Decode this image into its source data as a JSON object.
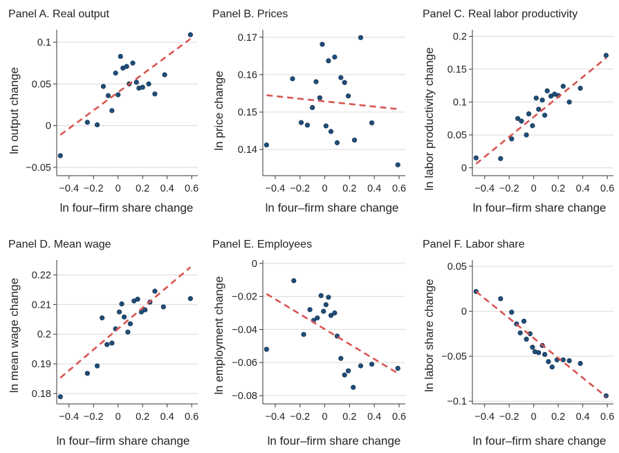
{
  "figure": {
    "panels": [
      {
        "title": "Panel A. Real output",
        "ylabel": "ln output change",
        "xlabel": "ln four–firm share change"
      },
      {
        "title": "Panel B. Prices",
        "ylabel": "ln price change",
        "xlabel": "ln four–firm share change"
      },
      {
        "title": "Panel C. Real labor productivity",
        "ylabel": "ln labor productivity change",
        "xlabel": "ln four–firm share change"
      },
      {
        "title": "Panel D. Mean wage",
        "ylabel": "ln mean wage change",
        "xlabel": "ln four–firm share change"
      },
      {
        "title": "Panel E. Employees",
        "ylabel": "ln employment change",
        "xlabel": "ln four–firm share change"
      },
      {
        "title": "Panel F. Labor share",
        "ylabel": "ln labor share change",
        "xlabel": "ln four–firm share change"
      }
    ]
  },
  "colors": {
    "point": "#1f4e79",
    "point_outline": "#0d2a45",
    "fit_line": "#d9534f",
    "gridline": "#d9d9d9",
    "axis": "#333333"
  },
  "chart_data": [
    {
      "type": "scatter",
      "title": "Panel A. Real output",
      "xlabel": "ln four–firm share change",
      "ylabel": "ln output change",
      "xlim": [
        -0.5,
        0.65
      ],
      "ylim": [
        -0.06,
        0.115
      ],
      "xticks": [
        -0.4,
        -0.2,
        0,
        0.2,
        0.4,
        0.6
      ],
      "xtick_labels": [
        "−0.4",
        "−0.2",
        "0",
        "0.2",
        "0.4",
        "0.6"
      ],
      "yticks": [
        -0.05,
        0,
        0.05,
        0.1
      ],
      "ytick_labels": [
        "−0.05",
        "0",
        "0.05",
        "0.1"
      ],
      "grid": "horizontal",
      "points": [
        {
          "x": -0.47,
          "y": -0.036
        },
        {
          "x": -0.25,
          "y": 0.004
        },
        {
          "x": -0.17,
          "y": 0.001
        },
        {
          "x": -0.12,
          "y": 0.047
        },
        {
          "x": -0.08,
          "y": 0.036
        },
        {
          "x": -0.05,
          "y": 0.018
        },
        {
          "x": -0.02,
          "y": 0.063
        },
        {
          "x": 0.0,
          "y": 0.037
        },
        {
          "x": 0.02,
          "y": 0.083
        },
        {
          "x": 0.04,
          "y": 0.069
        },
        {
          "x": 0.07,
          "y": 0.071
        },
        {
          "x": 0.09,
          "y": 0.05
        },
        {
          "x": 0.12,
          "y": 0.075
        },
        {
          "x": 0.15,
          "y": 0.052
        },
        {
          "x": 0.17,
          "y": 0.045
        },
        {
          "x": 0.2,
          "y": 0.046
        },
        {
          "x": 0.25,
          "y": 0.05
        },
        {
          "x": 0.3,
          "y": 0.038
        },
        {
          "x": 0.38,
          "y": 0.061
        },
        {
          "x": 0.59,
          "y": 0.109
        }
      ],
      "fit_line": [
        {
          "x": -0.47,
          "y": -0.011
        },
        {
          "x": 0.59,
          "y": 0.104
        }
      ]
    },
    {
      "type": "scatter",
      "title": "Panel B. Prices",
      "xlabel": "ln four–firm share change",
      "ylabel": "ln price change",
      "xlim": [
        -0.5,
        0.65
      ],
      "ylim": [
        0.133,
        0.172
      ],
      "xticks": [
        -0.4,
        -0.2,
        0,
        0.2,
        0.4,
        0.6
      ],
      "xtick_labels": [
        "−0.4",
        "−0.2",
        "0",
        "0.2",
        "0.4",
        "0.6"
      ],
      "yticks": [
        0.14,
        0.15,
        0.16,
        0.17
      ],
      "ytick_labels": [
        "0.14",
        "0.15",
        "0.16",
        "0.17"
      ],
      "grid": "horizontal",
      "points": [
        {
          "x": -0.47,
          "y": 0.1412
        },
        {
          "x": -0.26,
          "y": 0.1589
        },
        {
          "x": -0.19,
          "y": 0.1472
        },
        {
          "x": -0.14,
          "y": 0.1465
        },
        {
          "x": -0.1,
          "y": 0.1512
        },
        {
          "x": -0.07,
          "y": 0.1581
        },
        {
          "x": -0.04,
          "y": 0.1538
        },
        {
          "x": -0.02,
          "y": 0.1681
        },
        {
          "x": 0.01,
          "y": 0.1463
        },
        {
          "x": 0.03,
          "y": 0.1637
        },
        {
          "x": 0.05,
          "y": 0.1448
        },
        {
          "x": 0.08,
          "y": 0.1647
        },
        {
          "x": 0.1,
          "y": 0.1418
        },
        {
          "x": 0.13,
          "y": 0.1592
        },
        {
          "x": 0.16,
          "y": 0.1579
        },
        {
          "x": 0.19,
          "y": 0.1543
        },
        {
          "x": 0.24,
          "y": 0.1425
        },
        {
          "x": 0.29,
          "y": 0.1699
        },
        {
          "x": 0.38,
          "y": 0.1471
        },
        {
          "x": 0.59,
          "y": 0.1359
        }
      ],
      "fit_line": [
        {
          "x": -0.47,
          "y": 0.1545
        },
        {
          "x": 0.59,
          "y": 0.1508
        }
      ]
    },
    {
      "type": "scatter",
      "title": "Panel C. Real labor productivity",
      "xlabel": "ln four–firm share change",
      "ylabel": "ln labor productivity change",
      "xlim": [
        -0.5,
        0.65
      ],
      "ylim": [
        -0.012,
        0.21
      ],
      "xticks": [
        -0.4,
        -0.2,
        0,
        0.2,
        0.4,
        0.6
      ],
      "xtick_labels": [
        "−0.4",
        "−0.2",
        "0",
        "0.2",
        "0.4",
        "0.6"
      ],
      "yticks": [
        0,
        0.05,
        0.1,
        0.15,
        0.2
      ],
      "ytick_labels": [
        "0",
        "0.05",
        "0.1",
        "0.15",
        "0.2"
      ],
      "grid": "horizontal",
      "points": [
        {
          "x": -0.47,
          "y": 0.015
        },
        {
          "x": -0.27,
          "y": 0.014
        },
        {
          "x": -0.18,
          "y": 0.044
        },
        {
          "x": -0.13,
          "y": 0.075
        },
        {
          "x": -0.1,
          "y": 0.071
        },
        {
          "x": -0.06,
          "y": 0.05
        },
        {
          "x": -0.04,
          "y": 0.082
        },
        {
          "x": -0.01,
          "y": 0.064
        },
        {
          "x": 0.02,
          "y": 0.106
        },
        {
          "x": 0.04,
          "y": 0.089
        },
        {
          "x": 0.07,
          "y": 0.103
        },
        {
          "x": 0.09,
          "y": 0.08
        },
        {
          "x": 0.11,
          "y": 0.117
        },
        {
          "x": 0.14,
          "y": 0.109
        },
        {
          "x": 0.17,
          "y": 0.112
        },
        {
          "x": 0.2,
          "y": 0.11
        },
        {
          "x": 0.24,
          "y": 0.124
        },
        {
          "x": 0.29,
          "y": 0.1
        },
        {
          "x": 0.38,
          "y": 0.121
        },
        {
          "x": 0.59,
          "y": 0.171
        }
      ],
      "fit_line": [
        {
          "x": -0.47,
          "y": 0.006
        },
        {
          "x": 0.59,
          "y": 0.167
        }
      ]
    },
    {
      "type": "scatter",
      "title": "Panel D. Mean wage",
      "xlabel": "ln four–firm share change",
      "ylabel": "ln mean wage change",
      "xlim": [
        -0.5,
        0.65
      ],
      "ylim": [
        0.1765,
        0.225
      ],
      "xticks": [
        -0.4,
        -0.2,
        0,
        0.2,
        0.4,
        0.6
      ],
      "xtick_labels": [
        "−0.4",
        "−0.2",
        "0",
        "0.2",
        "0.4",
        "0.6"
      ],
      "yticks": [
        0.18,
        0.19,
        0.2,
        0.21,
        0.22
      ],
      "ytick_labels": [
        "0.18",
        "0.19",
        "0.2",
        "0.21",
        "0.22"
      ],
      "grid": "horizontal",
      "points": [
        {
          "x": -0.47,
          "y": 0.1789
        },
        {
          "x": -0.25,
          "y": 0.1868
        },
        {
          "x": -0.17,
          "y": 0.1893
        },
        {
          "x": -0.13,
          "y": 0.2055
        },
        {
          "x": -0.09,
          "y": 0.1965
        },
        {
          "x": -0.05,
          "y": 0.197
        },
        {
          "x": -0.02,
          "y": 0.2018
        },
        {
          "x": 0.01,
          "y": 0.2075
        },
        {
          "x": 0.03,
          "y": 0.2102
        },
        {
          "x": 0.05,
          "y": 0.2058
        },
        {
          "x": 0.08,
          "y": 0.2007
        },
        {
          "x": 0.1,
          "y": 0.2035
        },
        {
          "x": 0.13,
          "y": 0.2112
        },
        {
          "x": 0.16,
          "y": 0.2118
        },
        {
          "x": 0.19,
          "y": 0.2075
        },
        {
          "x": 0.22,
          "y": 0.2082
        },
        {
          "x": 0.26,
          "y": 0.2108
        },
        {
          "x": 0.3,
          "y": 0.2145
        },
        {
          "x": 0.37,
          "y": 0.2092
        },
        {
          "x": 0.59,
          "y": 0.212
        }
      ],
      "fit_line": [
        {
          "x": -0.47,
          "y": 0.1853
        },
        {
          "x": 0.59,
          "y": 0.2226
        }
      ]
    },
    {
      "type": "scatter",
      "title": "Panel E. Employees",
      "xlabel": "ln four–firm share change",
      "ylabel": "ln employment change",
      "xlim": [
        -0.5,
        0.65
      ],
      "ylim": [
        -0.085,
        0.002
      ],
      "xticks": [
        -0.4,
        -0.2,
        0,
        0.2,
        0.4,
        0.6
      ],
      "xtick_labels": [
        "−0.4",
        "−0.2",
        "0",
        "0.2",
        "0.4",
        "0.6"
      ],
      "yticks": [
        0,
        -0.02,
        -0.04,
        -0.06,
        -0.08
      ],
      "ytick_labels": [
        "0",
        "−0.02",
        "−0.04",
        "−0.06",
        "−0.08"
      ],
      "grid": "horizontal",
      "points": [
        {
          "x": -0.47,
          "y": -0.052
        },
        {
          "x": -0.25,
          "y": -0.0105
        },
        {
          "x": -0.17,
          "y": -0.043
        },
        {
          "x": -0.12,
          "y": -0.028
        },
        {
          "x": -0.09,
          "y": -0.0345
        },
        {
          "x": -0.06,
          "y": -0.033
        },
        {
          "x": -0.03,
          "y": -0.0195
        },
        {
          "x": -0.01,
          "y": -0.029
        },
        {
          "x": 0.01,
          "y": -0.025
        },
        {
          "x": 0.03,
          "y": -0.0205
        },
        {
          "x": 0.05,
          "y": -0.0315
        },
        {
          "x": 0.08,
          "y": -0.03
        },
        {
          "x": 0.1,
          "y": -0.044
        },
        {
          "x": 0.13,
          "y": -0.0575
        },
        {
          "x": 0.16,
          "y": -0.0675
        },
        {
          "x": 0.19,
          "y": -0.065
        },
        {
          "x": 0.23,
          "y": -0.075
        },
        {
          "x": 0.29,
          "y": -0.062
        },
        {
          "x": 0.38,
          "y": -0.061
        },
        {
          "x": 0.59,
          "y": -0.0635
        }
      ],
      "fit_line": [
        {
          "x": -0.47,
          "y": -0.0185
        },
        {
          "x": 0.59,
          "y": -0.0665
        }
      ]
    },
    {
      "type": "scatter",
      "title": "Panel F. Labor share",
      "xlabel": "ln four–firm share change",
      "ylabel": "ln labor share change",
      "xlim": [
        -0.5,
        0.65
      ],
      "ylim": [
        -0.103,
        0.057
      ],
      "xticks": [
        -0.4,
        -0.2,
        0,
        0.2,
        0.4,
        0.6
      ],
      "xtick_labels": [
        "−0.4",
        "−0.2",
        "0",
        "0.2",
        "0.4",
        "0.6"
      ],
      "yticks": [
        0.05,
        0,
        -0.05,
        -0.1
      ],
      "ytick_labels": [
        "0.05",
        "0",
        "−0.05",
        "−0.1"
      ],
      "grid": "horizontal",
      "points": [
        {
          "x": -0.47,
          "y": 0.022
        },
        {
          "x": -0.27,
          "y": 0.014
        },
        {
          "x": -0.18,
          "y": -0.001
        },
        {
          "x": -0.14,
          "y": -0.014
        },
        {
          "x": -0.11,
          "y": -0.024
        },
        {
          "x": -0.08,
          "y": -0.011
        },
        {
          "x": -0.06,
          "y": -0.031
        },
        {
          "x": -0.03,
          "y": -0.025
        },
        {
          "x": -0.01,
          "y": -0.04
        },
        {
          "x": 0.01,
          "y": -0.045
        },
        {
          "x": 0.04,
          "y": -0.046
        },
        {
          "x": 0.07,
          "y": -0.038
        },
        {
          "x": 0.09,
          "y": -0.048
        },
        {
          "x": 0.12,
          "y": -0.056
        },
        {
          "x": 0.15,
          "y": -0.062
        },
        {
          "x": 0.19,
          "y": -0.054
        },
        {
          "x": 0.24,
          "y": -0.054
        },
        {
          "x": 0.29,
          "y": -0.055
        },
        {
          "x": 0.38,
          "y": -0.058
        },
        {
          "x": 0.59,
          "y": -0.094
        }
      ],
      "fit_line": [
        {
          "x": -0.47,
          "y": 0.022
        },
        {
          "x": 0.59,
          "y": -0.095
        }
      ]
    }
  ]
}
